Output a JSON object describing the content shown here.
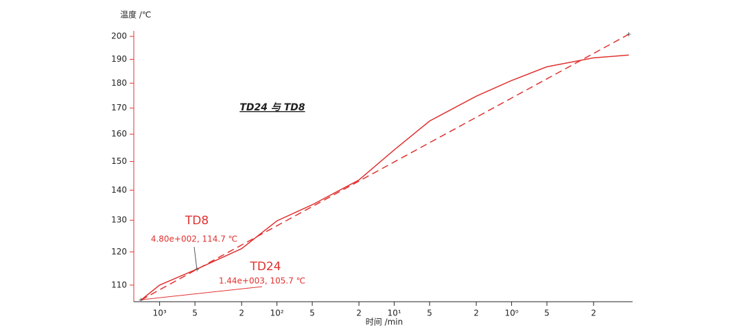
{
  "chart_data": {
    "type": "line",
    "title": "TD24 与 TD8",
    "y_label": "温度 /℃",
    "x_label": "时间 /min",
    "xscale": "log",
    "xreversed": true,
    "yscale": "reciprocal-kelvin",
    "xlim": [
      1660,
      0.093
    ],
    "ylim": [
      105.2,
      202.5
    ],
    "xticks": [
      {
        "value": 1000,
        "label": "10³"
      },
      {
        "value": 500,
        "label": "5"
      },
      {
        "value": 200,
        "label": "2"
      },
      {
        "value": 100,
        "label": "10²"
      },
      {
        "value": 50,
        "label": "5"
      },
      {
        "value": 20,
        "label": "2"
      },
      {
        "value": 10,
        "label": "10¹"
      },
      {
        "value": 5,
        "label": "5"
      },
      {
        "value": 2,
        "label": "2"
      },
      {
        "value": 1,
        "label": "10⁰"
      },
      {
        "value": 0.5,
        "label": "5"
      },
      {
        "value": 0.2,
        "label": "2"
      }
    ],
    "yticks": [
      110,
      120,
      130,
      140,
      150,
      160,
      170,
      180,
      190,
      200
    ],
    "series": [
      {
        "name": "TD24",
        "color": "#e0312f",
        "dash": false,
        "x": [
          1440,
          1000,
          500,
          200,
          100,
          50,
          20,
          10,
          5,
          2,
          1,
          0.5,
          0.2,
          0.1
        ],
        "values": [
          105.7,
          110,
          114.5,
          121.0,
          129.8,
          135.1,
          143.5,
          154.2,
          165.0,
          174.7,
          181.1,
          186.8,
          190.6,
          191.8
        ]
      },
      {
        "name": "TD8",
        "color": "#e0312f",
        "dash": true,
        "x": [
          1440,
          480,
          0.1
        ],
        "values": [
          105.7,
          114.7,
          201
        ]
      }
    ],
    "annotations": [
      {
        "series": "TD8",
        "text": "4.80e+002, 114.7 ℃"
      },
      {
        "series": "TD24",
        "text": "1.44e+003, 105.7 ℃"
      }
    ]
  }
}
